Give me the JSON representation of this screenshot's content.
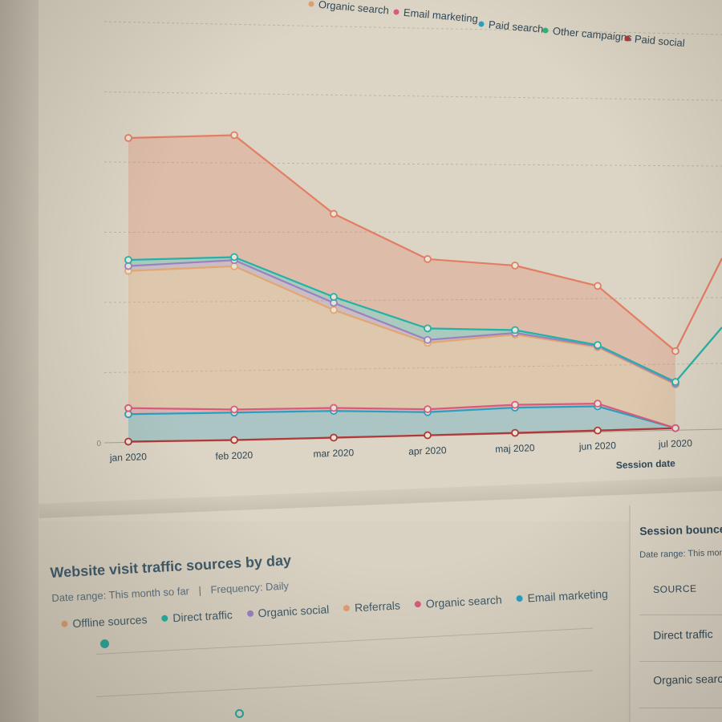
{
  "chart_data": {
    "type": "area",
    "stacked": true,
    "xlabel": "Session date",
    "ylabel": "",
    "categories": [
      "jan 2020",
      "feb 2020",
      "mar 2020",
      "apr 2020",
      "maj 2020",
      "jun 2020",
      "jul 2020"
    ],
    "y_ticks": [
      "0",
      "",
      "",
      "",
      "",
      "",
      ""
    ],
    "ylim": [
      0,
      6
    ],
    "legend_position": "top",
    "legend": [
      {
        "name": "Organic search",
        "color": "#e0a070"
      },
      {
        "name": "Email marketing",
        "color": "#d85a7c"
      },
      {
        "name": "Paid search",
        "color": "#2a9fbf"
      },
      {
        "name": "Other campaigns",
        "color": "#30b07a"
      },
      {
        "name": "Paid social",
        "color": "#b03838"
      }
    ],
    "series": [
      {
        "key": "paid_social",
        "color": "#b03838",
        "values": [
          0.02,
          0.02,
          0.02,
          0.02,
          0.02,
          0.02,
          0.02
        ]
      },
      {
        "key": "paid_search",
        "color": "#2a9fbf",
        "values": [
          0.45,
          0.45,
          0.45,
          0.4,
          0.45,
          0.45,
          0.0
        ]
      },
      {
        "key": "email_marketing",
        "color": "#d85a7c",
        "values": [
          0.1,
          0.05,
          0.05,
          0.05,
          0.05,
          0.05,
          0.0
        ]
      },
      {
        "key": "orange_mid",
        "color": "#e3a670",
        "values": [
          2.25,
          2.35,
          1.65,
          1.15,
          1.25,
          1.05,
          0.85
        ]
      },
      {
        "key": "purple_mid",
        "color": "#9a82c0",
        "values": [
          0.08,
          0.1,
          0.12,
          0.05,
          0.03,
          0.02,
          0.02
        ]
      },
      {
        "key": "teal_mid",
        "color": "#26b0a6",
        "values": [
          0.1,
          0.05,
          0.1,
          0.2,
          0.05,
          0.02,
          0.03
        ]
      },
      {
        "key": "top_salmon",
        "color": "#e27e64",
        "values": [
          2.0,
          2.0,
          1.4,
          1.2,
          1.15,
          1.1,
          0.6
        ]
      }
    ]
  },
  "bottom": {
    "title": "Website visit traffic sources by day",
    "date_range": "Date range: This month so far",
    "frequency": "Frequency: Daily",
    "legend": [
      {
        "name": "Offline sources",
        "color": "#e0a070"
      },
      {
        "name": "Direct traffic",
        "color": "#22b0a2"
      },
      {
        "name": "Organic social",
        "color": "#9a82c0"
      },
      {
        "name": "Referrals",
        "color": "#e0a070"
      },
      {
        "name": "Organic search",
        "color": "#d85a7c"
      },
      {
        "name": "Email marketing",
        "color": "#2a9fbf"
      }
    ]
  },
  "side": {
    "title": "Session bounce rate",
    "date_range": "Date range: This month so",
    "header": "SOURCE",
    "rows": [
      "Direct traffic",
      "Organic search"
    ]
  }
}
